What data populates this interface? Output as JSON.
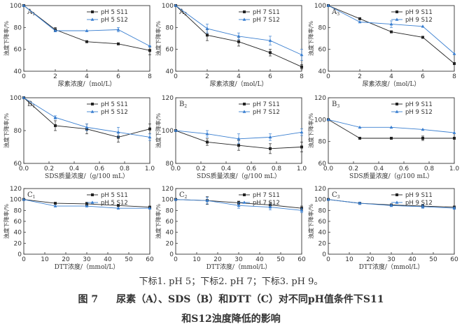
{
  "colors": {
    "s11": "#222222",
    "s12": "#3a7fd0",
    "axis": "#333333"
  },
  "caption": {
    "subscript_note": "下标1. pH 5；下标2. pH 7；下标3. pH 9。",
    "figure_number": "图 7",
    "title_line1": "尿素（A）、SDS（B）和DTT（C）对不同pH值条件下S11",
    "title_line2": "和S12浊度降低的影响"
  },
  "chart_data": [
    {
      "type": "line",
      "panel_label": "A",
      "panel_sub": "1",
      "xlabel": "尿素浓度/（mol/L）",
      "ylabel": "浊度下降率/%",
      "xlim": [
        0,
        8
      ],
      "ylim": [
        40,
        100
      ],
      "xticks": [
        0,
        2,
        4,
        6,
        8
      ],
      "yticks": [
        40,
        60,
        80,
        100
      ],
      "legend": "top-right",
      "x": [
        0,
        2,
        4,
        6,
        8
      ],
      "series": [
        {
          "name": "pH 5 S11",
          "values": [
            100,
            78,
            67,
            65,
            59
          ],
          "errors": [
            0,
            2,
            0,
            0,
            4
          ]
        },
        {
          "name": "pH 5 S12",
          "values": [
            100,
            77,
            77,
            78,
            63
          ],
          "errors": [
            0,
            0,
            0,
            2,
            0
          ]
        }
      ]
    },
    {
      "type": "line",
      "panel_label": "A",
      "panel_sub": "2",
      "xlabel": "尿素浓度/（mol/L）",
      "ylabel": "浊度下降率/%",
      "xlim": [
        0,
        8
      ],
      "ylim": [
        40,
        100
      ],
      "xticks": [
        0,
        2,
        4,
        6,
        8
      ],
      "yticks": [
        40,
        60,
        80,
        100
      ],
      "legend": "top-right",
      "x": [
        0,
        2,
        4,
        6,
        8
      ],
      "series": [
        {
          "name": "pH 7 S11",
          "values": [
            100,
            73,
            67,
            57,
            44
          ],
          "errors": [
            0,
            5,
            4,
            3,
            2
          ]
        },
        {
          "name": "pH 7 S12",
          "values": [
            100,
            79,
            72,
            68,
            55
          ],
          "errors": [
            0,
            4,
            3,
            4,
            5
          ]
        }
      ]
    },
    {
      "type": "line",
      "panel_label": "A",
      "panel_sub": "3",
      "xlabel": "尿素浓度/（mol/L）",
      "ylabel": "浊度下降率/%",
      "xlim": [
        0,
        8
      ],
      "ylim": [
        40,
        100
      ],
      "xticks": [
        0,
        2,
        4,
        6,
        8
      ],
      "yticks": [
        40,
        60,
        80,
        100
      ],
      "legend": "top-right",
      "x": [
        0,
        2,
        4,
        6,
        8
      ],
      "series": [
        {
          "name": "pH 9 S11",
          "values": [
            100,
            88,
            76,
            71,
            47
          ],
          "errors": [
            0,
            0,
            0,
            0,
            0
          ]
        },
        {
          "name": "pH 9 S12",
          "values": [
            100,
            85,
            83,
            81,
            56
          ],
          "errors": [
            0,
            0,
            3,
            0,
            0
          ]
        }
      ]
    },
    {
      "type": "line",
      "panel_label": "B",
      "panel_sub": "1",
      "xlabel": "SDS质量浓度/（g/100 mL）",
      "ylabel": "浊度下降率/%",
      "xlim": [
        0,
        1.0
      ],
      "ylim": [
        60,
        100
      ],
      "xticks": [
        0,
        0.2,
        0.4,
        0.6,
        0.8,
        1.0
      ],
      "yticks": [
        60,
        80,
        100
      ],
      "legend": "top-right",
      "x": [
        0,
        0.25,
        0.5,
        0.75,
        1.0
      ],
      "series": [
        {
          "name": "pH 5 S11",
          "values": [
            100,
            83,
            81,
            76,
            81
          ],
          "errors": [
            0,
            3,
            3,
            3,
            3
          ]
        },
        {
          "name": "pH 5 S12",
          "values": [
            100,
            88,
            82,
            79,
            76
          ],
          "errors": [
            0,
            1,
            2,
            3,
            2
          ]
        }
      ]
    },
    {
      "type": "line",
      "panel_label": "B",
      "panel_sub": "2",
      "xlabel": "SDS质量浓度/（g/100 mL）",
      "ylabel": "浊度下降率/%",
      "xlim": [
        0,
        1.0
      ],
      "ylim": [
        80,
        120
      ],
      "xticks": [
        0,
        0.2,
        0.4,
        0.6,
        0.8,
        1.0
      ],
      "yticks": [
        80,
        100,
        120
      ],
      "legend": "top-right",
      "x": [
        0,
        0.25,
        0.5,
        0.75,
        1.0
      ],
      "series": [
        {
          "name": "pH 7 S11",
          "values": [
            100,
            93,
            91,
            89,
            90
          ],
          "errors": [
            0,
            2,
            3,
            3,
            3
          ]
        },
        {
          "name": "pH 7 S12",
          "values": [
            100,
            98,
            95,
            96,
            99
          ],
          "errors": [
            0,
            2,
            3,
            2,
            2
          ]
        }
      ]
    },
    {
      "type": "line",
      "panel_label": "B",
      "panel_sub": "3",
      "xlabel": "SDS质量浓度/（g/100 mL）",
      "ylabel": "浊度下降率/%",
      "xlim": [
        0,
        1.0
      ],
      "ylim": [
        60,
        120
      ],
      "xticks": [
        0,
        0.2,
        0.4,
        0.6,
        0.8,
        1.0
      ],
      "yticks": [
        60,
        80,
        100,
        120
      ],
      "legend": "top-right",
      "x": [
        0,
        0.25,
        0.5,
        0.75,
        1.0
      ],
      "series": [
        {
          "name": "pH 9 S11",
          "values": [
            100,
            83,
            83,
            83,
            83
          ],
          "errors": [
            0,
            0,
            0,
            2,
            0
          ]
        },
        {
          "name": "pH 9 S12",
          "values": [
            100,
            93,
            93,
            91,
            88
          ],
          "errors": [
            0,
            0,
            0,
            0,
            0
          ]
        }
      ]
    },
    {
      "type": "line",
      "panel_label": "C",
      "panel_sub": "1",
      "xlabel": "DTT浓度/（mmol/L）",
      "ylabel": "浊度下降率/%",
      "xlim": [
        0,
        60
      ],
      "ylim": [
        0,
        120
      ],
      "xticks": [
        0,
        10,
        20,
        30,
        40,
        50,
        60
      ],
      "yticks": [
        0,
        20,
        40,
        60,
        80,
        100,
        120
      ],
      "legend": "top-right",
      "x": [
        0,
        15,
        30,
        45,
        60
      ],
      "series": [
        {
          "name": "pH 5 S11",
          "values": [
            100,
            93,
            92,
            89,
            86
          ],
          "errors": [
            0,
            0,
            3,
            0,
            0
          ]
        },
        {
          "name": "pH 5 S12",
          "values": [
            100,
            88,
            88,
            84,
            84
          ],
          "errors": [
            0,
            0,
            0,
            0,
            0
          ]
        }
      ]
    },
    {
      "type": "line",
      "panel_label": "C",
      "panel_sub": "2",
      "xlabel": "DTT浓度/（mmol/L）",
      "ylabel": "浊度下降率/%",
      "xlim": [
        0,
        60
      ],
      "ylim": [
        0,
        120
      ],
      "xticks": [
        0,
        10,
        20,
        30,
        40,
        50,
        60
      ],
      "yticks": [
        0,
        20,
        40,
        60,
        80,
        100,
        120
      ],
      "legend": "top-right",
      "x": [
        0,
        15,
        30,
        45,
        60
      ],
      "series": [
        {
          "name": "pH 7 S11",
          "values": [
            100,
            98,
            94,
            90,
            84
          ],
          "errors": [
            0,
            7,
            3,
            5,
            4
          ]
        },
        {
          "name": "pH 7 S12",
          "values": [
            100,
            98,
            89,
            86,
            80
          ],
          "errors": [
            0,
            6,
            5,
            5,
            4
          ]
        }
      ]
    },
    {
      "type": "line",
      "panel_label": "C",
      "panel_sub": "3",
      "xlabel": "DTT浓度/（mmol/L）",
      "ylabel": "浊度下降率/%",
      "xlim": [
        0,
        60
      ],
      "ylim": [
        0,
        120
      ],
      "xticks": [
        0,
        10,
        20,
        30,
        40,
        50,
        60
      ],
      "yticks": [
        0,
        20,
        40,
        60,
        80,
        100,
        120
      ],
      "legend": "top-right",
      "x": [
        0,
        15,
        30,
        45,
        60
      ],
      "series": [
        {
          "name": "pH 9 S11",
          "values": [
            100,
            93,
            90,
            88,
            86
          ],
          "errors": [
            0,
            2,
            2,
            3,
            2
          ]
        },
        {
          "name": "pH 9 S12",
          "values": [
            100,
            93,
            89,
            87,
            84
          ],
          "errors": [
            0,
            2,
            2,
            3,
            2
          ]
        }
      ]
    }
  ]
}
